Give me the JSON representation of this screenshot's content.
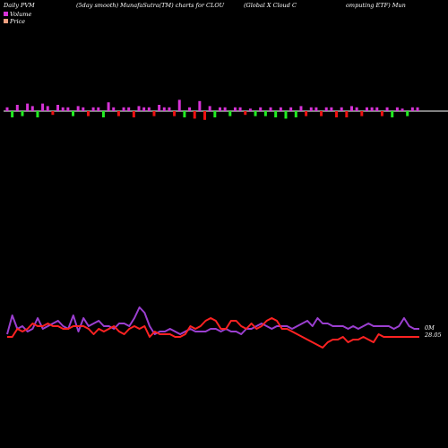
{
  "header": {
    "segments": [
      "Daily PVM",
      "(5day smooth) MunafaSutra(TM) charts for CLOU",
      "(Global X  Cloud C",
      "omputing ETF) Mun"
    ]
  },
  "colors": {
    "background": "#000000",
    "volume_up": "#d633d6",
    "volume_down_red": "#ee1111",
    "volume_down_green": "#22ee22",
    "volume_line": "#9b3fd0",
    "price_line": "#ff2222",
    "legend_volume": "#d633d6",
    "legend_price": "#f0a080",
    "zero_line": "#ffffff"
  },
  "chart_data": [
    {
      "type": "bar",
      "title": "",
      "legend": {
        "placement": "top-left",
        "entries": [
          "Volume",
          "Price"
        ]
      },
      "ylim": [
        -1,
        1
      ],
      "grid": false,
      "categories": [
        1,
        2,
        3,
        4,
        5,
        6,
        7,
        8,
        9,
        10,
        11,
        12,
        13,
        14,
        15,
        16,
        17,
        18,
        19,
        20,
        21,
        22,
        23,
        24,
        25,
        26,
        27,
        28,
        29,
        30,
        31,
        32,
        33,
        34,
        35,
        36,
        37,
        38,
        39,
        40,
        41,
        42,
        43,
        44,
        45,
        46,
        47,
        48,
        49,
        50,
        51,
        52,
        53,
        54,
        55,
        56,
        57,
        58,
        59,
        60,
        61,
        62,
        63,
        64,
        65,
        66,
        67,
        68,
        69,
        70,
        71,
        72,
        73,
        74,
        75,
        76,
        77,
        78,
        79,
        80,
        81,
        82
      ],
      "values": [
        0.3,
        -0.5,
        0.5,
        -0.4,
        0.6,
        0.4,
        -0.5,
        0.6,
        0.4,
        -0.3,
        0.5,
        0.3,
        0.3,
        -0.4,
        0.4,
        0.3,
        -0.4,
        0.3,
        0.3,
        -0.5,
        0.7,
        0.3,
        -0.4,
        0.3,
        0.3,
        -0.5,
        0.4,
        0.3,
        0.3,
        -0.4,
        0.5,
        0.3,
        0.3,
        -0.4,
        0.9,
        -0.5,
        0.3,
        -0.6,
        0.8,
        -0.7,
        0.4,
        -0.5,
        0.3,
        0.3,
        -0.4,
        0.3,
        0.3,
        -0.3,
        0.2,
        -0.4,
        0.3,
        -0.4,
        0.3,
        -0.5,
        0.3,
        -0.6,
        0.3,
        -0.5,
        0.4,
        -0.4,
        0.3,
        0.3,
        -0.4,
        0.3,
        0.3,
        -0.5,
        0.3,
        -0.5,
        0.4,
        0.3,
        -0.4,
        0.3,
        0.3,
        0.3,
        -0.4,
        0.3,
        -0.5,
        0.3,
        0.2,
        -0.4,
        0.3,
        0.3
      ],
      "down_color": [
        "",
        "green",
        "",
        "green",
        "",
        "",
        "green",
        "",
        "",
        "red",
        "",
        "",
        "",
        "green",
        "",
        "",
        "red",
        "",
        "",
        "green",
        "",
        "",
        "red",
        "",
        "",
        "red",
        "",
        "",
        "",
        "red",
        "",
        "",
        "",
        "red",
        "",
        "green",
        "",
        "red",
        "",
        "red",
        "",
        "green",
        "",
        "",
        "green",
        "",
        "",
        "red",
        "",
        "green",
        "",
        "green",
        "",
        "green",
        "",
        "green",
        "",
        "green",
        "",
        "red",
        "",
        "",
        "red",
        "",
        "",
        "red",
        "",
        "red",
        "",
        "",
        "red",
        "",
        "",
        "",
        "red",
        "",
        "green",
        "",
        "",
        "green",
        "",
        ""
      ]
    },
    {
      "type": "line",
      "title": "",
      "x": [
        1,
        2,
        3,
        4,
        5,
        6,
        7,
        8,
        9,
        10,
        11,
        12,
        13,
        14,
        15,
        16,
        17,
        18,
        19,
        20,
        21,
        22,
        23,
        24,
        25,
        26,
        27,
        28,
        29,
        30,
        31,
        32,
        33,
        34,
        35,
        36,
        37,
        38,
        39,
        40,
        41,
        42,
        43,
        44,
        45,
        46,
        47,
        48,
        49,
        50,
        51,
        52,
        53,
        54,
        55,
        56,
        57,
        58,
        59,
        60,
        61,
        62,
        63,
        64,
        65,
        66,
        67,
        68,
        69,
        70,
        71,
        72,
        73,
        74,
        75,
        76,
        77,
        78,
        79,
        80,
        81,
        82
      ],
      "series": [
        {
          "name": "Volume",
          "values": [
            0.45,
            0.8,
            0.55,
            0.6,
            0.5,
            0.55,
            0.75,
            0.55,
            0.6,
            0.65,
            0.7,
            0.6,
            0.55,
            0.8,
            0.5,
            0.75,
            0.6,
            0.65,
            0.7,
            0.6,
            0.6,
            0.55,
            0.65,
            0.65,
            0.6,
            0.75,
            0.95,
            0.85,
            0.6,
            0.45,
            0.5,
            0.5,
            0.55,
            0.5,
            0.45,
            0.5,
            0.55,
            0.5,
            0.5,
            0.5,
            0.55,
            0.55,
            0.5,
            0.55,
            0.5,
            0.5,
            0.45,
            0.55,
            0.55,
            0.6,
            0.65,
            0.6,
            0.55,
            0.6,
            0.6,
            0.6,
            0.55,
            0.6,
            0.65,
            0.7,
            0.6,
            0.75,
            0.65,
            0.65,
            0.6,
            0.6,
            0.6,
            0.55,
            0.6,
            0.55,
            0.6,
            0.65,
            0.6,
            0.6,
            0.6,
            0.6,
            0.55,
            0.6,
            0.75,
            0.6,
            0.55,
            0.55
          ]
        },
        {
          "name": "Price",
          "values": [
            0.4,
            0.4,
            0.55,
            0.5,
            0.55,
            0.65,
            0.6,
            0.6,
            0.65,
            0.6,
            0.6,
            0.55,
            0.55,
            0.6,
            0.6,
            0.6,
            0.55,
            0.45,
            0.55,
            0.5,
            0.55,
            0.6,
            0.5,
            0.45,
            0.55,
            0.6,
            0.55,
            0.6,
            0.4,
            0.5,
            0.45,
            0.45,
            0.45,
            0.4,
            0.4,
            0.45,
            0.6,
            0.55,
            0.6,
            0.7,
            0.75,
            0.7,
            0.55,
            0.55,
            0.7,
            0.7,
            0.6,
            0.55,
            0.65,
            0.55,
            0.6,
            0.7,
            0.75,
            0.7,
            0.55,
            0.55,
            0.5,
            0.45,
            0.4,
            0.35,
            0.3,
            0.25,
            0.2,
            0.3,
            0.35,
            0.35,
            0.4,
            0.3,
            0.35,
            0.35,
            0.4,
            0.35,
            0.3,
            0.45,
            0.4,
            0.4,
            0.4,
            0.4,
            0.4,
            0.4,
            0.4,
            0.4
          ]
        }
      ],
      "annotations": [
        "0M",
        "28.05"
      ]
    }
  ]
}
